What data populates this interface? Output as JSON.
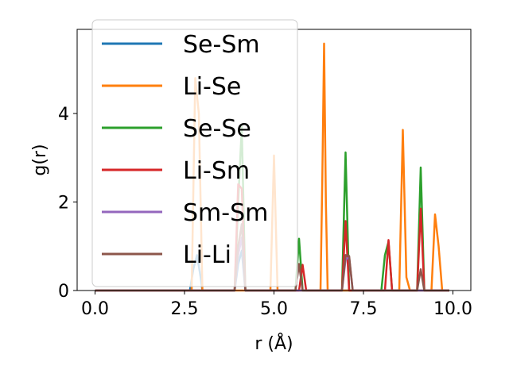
{
  "chart_data": {
    "type": "line",
    "xlabel": "r (Å)",
    "ylabel": "g(r)",
    "xlim": [
      -0.5,
      10.5
    ],
    "ylim": [
      0,
      5.9
    ],
    "xticks": [
      0.0,
      2.5,
      5.0,
      7.5,
      10.0
    ],
    "xtick_labels": [
      "0.0",
      "2.5",
      "5.0",
      "7.5",
      "10.0"
    ],
    "yticks": [
      0,
      2,
      4
    ],
    "ytick_labels": [
      "0",
      "2",
      "4"
    ],
    "grid": false,
    "legend_placement": "upper-left",
    "series": [
      {
        "name": "Se-Sm",
        "color": "#1f77b4",
        "x": [
          0.0,
          2.65,
          2.75,
          2.85,
          2.95,
          3.0,
          3.9,
          4.0,
          4.1,
          4.2,
          9.9
        ],
        "y": [
          0,
          0,
          0.5,
          0.8,
          0.3,
          0,
          0,
          0.6,
          0.9,
          0,
          0
        ]
      },
      {
        "name": "Li-Se",
        "color": "#ff7f0e",
        "x": [
          0.0,
          2.7,
          2.8,
          2.9,
          3.0,
          4.9,
          5.0,
          5.1,
          6.3,
          6.35,
          6.4,
          6.45,
          6.5,
          8.5,
          8.6,
          8.7,
          8.8,
          9.4,
          9.5,
          9.6,
          9.7,
          9.9
        ],
        "y": [
          0,
          0,
          4.8,
          4.0,
          0,
          0,
          3.05,
          0,
          0,
          2.5,
          5.58,
          2.0,
          0,
          0,
          3.63,
          0.3,
          0,
          0,
          1.72,
          1.0,
          0,
          0
        ]
      },
      {
        "name": "Se-Se",
        "color": "#2ca02c",
        "x": [
          0.0,
          3.9,
          4.0,
          4.1,
          4.2,
          5.6,
          5.7,
          5.8,
          6.9,
          7.0,
          7.1,
          8.0,
          8.1,
          8.2,
          8.3,
          9.0,
          9.1,
          9.2,
          9.9
        ],
        "y": [
          0,
          0,
          2.0,
          3.7,
          0,
          0,
          1.17,
          0,
          0,
          3.12,
          0,
          0,
          0.8,
          1.1,
          0,
          0,
          2.78,
          0,
          0
        ]
      },
      {
        "name": "Li-Sm",
        "color": "#d62728",
        "x": [
          0.0,
          3.9,
          4.0,
          4.1,
          4.2,
          5.7,
          5.8,
          5.9,
          6.9,
          7.0,
          7.1,
          8.1,
          8.2,
          8.3,
          9.0,
          9.1,
          9.2,
          9.9
        ],
        "y": [
          0,
          0,
          2.4,
          2.3,
          0,
          0,
          0.58,
          0,
          0,
          1.57,
          0,
          0,
          1.14,
          0,
          0,
          1.85,
          0,
          0
        ]
      },
      {
        "name": "Sm-Sm",
        "color": "#9467bd",
        "x": [
          0.0,
          3.9,
          4.0,
          4.1,
          4.2,
          6.9,
          7.0,
          7.1,
          7.2,
          9.9
        ],
        "y": [
          0,
          0,
          0.8,
          1.2,
          0,
          0,
          0.7,
          0.75,
          0,
          0
        ]
      },
      {
        "name": "Li-Li",
        "color": "#8c564b",
        "x": [
          0.0,
          3.9,
          4.0,
          4.1,
          4.2,
          5.6,
          5.7,
          5.8,
          6.9,
          7.0,
          7.1,
          7.2,
          9.0,
          9.1,
          9.2,
          9.9
        ],
        "y": [
          0,
          0,
          1.0,
          1.5,
          0,
          0,
          0.6,
          0,
          0,
          0.8,
          0.78,
          0,
          0,
          0.48,
          0,
          0
        ]
      }
    ]
  }
}
